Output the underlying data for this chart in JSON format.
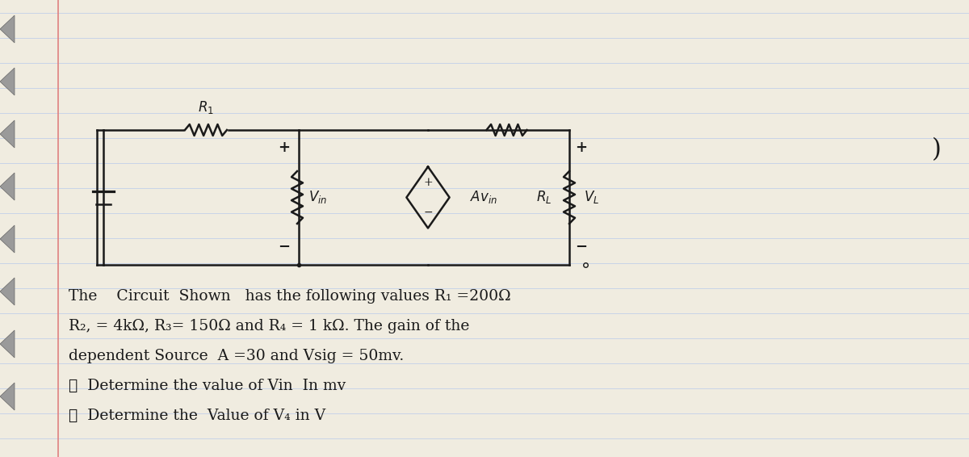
{
  "bg_color": "#e8e4d8",
  "line_color": "#1a1a1a",
  "paper_color": "#f0ece0",
  "ruled_line_color": "#c8d4e8",
  "margin_line_color": "#e08080",
  "title": "",
  "circuit_text_lines": [
    "The    Circuit  Shown   has the following values R₁ =200Ω",
    "R₂, = 4kΩ, R₃= 150Ω and R₄ = 1 kΩ. The gain of the",
    "dependent Source  A =30 and Vsig = 50mv.",
    "ⓐ  Determine the value of Vin  In mv",
    "ⓑ  Determine the  Value of V₄ in V"
  ],
  "font_size_text": 13.5,
  "font_size_labels": 11,
  "handwriting_font": "serif"
}
